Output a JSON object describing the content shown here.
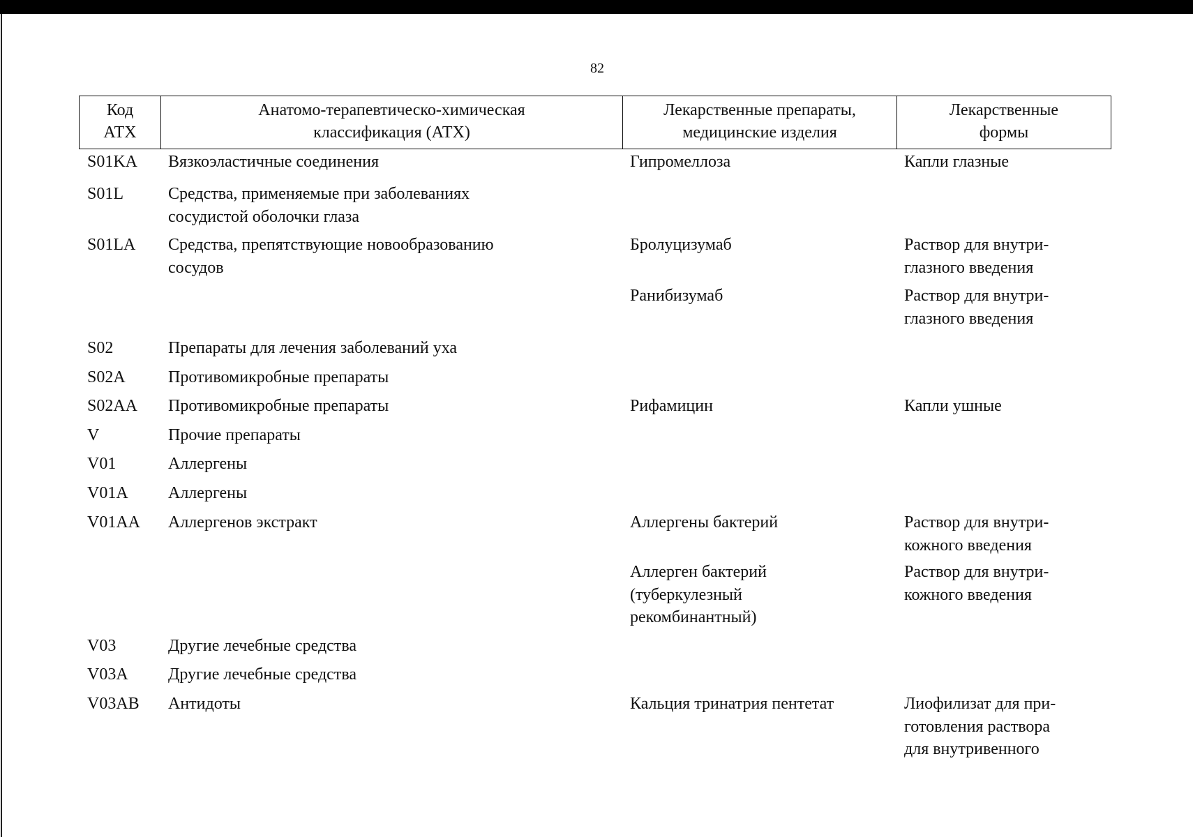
{
  "page_number": "82",
  "header": {
    "col1": [
      "Код",
      "АТХ"
    ],
    "col2": [
      "Анатомо-терапевтическо-химическая",
      "классификация (АТХ)"
    ],
    "col3": [
      "Лекарственные препараты,",
      "медицинские изделия"
    ],
    "col4": [
      "Лекарственные",
      "формы"
    ]
  },
  "rows": [
    {
      "code": "S01KA",
      "class": [
        "Вязкоэластичные соединения"
      ],
      "drug": [
        "Гипромеллоза"
      ],
      "form": [
        "Капли глазные"
      ]
    },
    {
      "code": "S01L",
      "class": [
        "Средства, применяемые при заболеваниях",
        "сосудистой оболочки глаза"
      ],
      "drug": [],
      "form": []
    },
    {
      "code": "S01LA",
      "class": [
        "Средства, препятствующие новообразованию",
        "сосудов"
      ],
      "drug": [
        "Бролуцизумаб"
      ],
      "form": [
        "Раствор для внутри-",
        "глазного введения"
      ]
    },
    {
      "code": "",
      "class": [],
      "drug": [
        "Ранибизумаб"
      ],
      "form": [
        "Раствор для внутри-",
        "глазного введения"
      ]
    },
    {
      "code": "S02",
      "class": [
        "Препараты для лечения заболеваний уха"
      ],
      "drug": [],
      "form": []
    },
    {
      "code": "S02A",
      "class": [
        "Противомикробные препараты"
      ],
      "drug": [],
      "form": []
    },
    {
      "code": "S02AA",
      "class": [
        "Противомикробные препараты"
      ],
      "drug": [
        "Рифамицин"
      ],
      "form": [
        "Капли ушные"
      ]
    },
    {
      "code": "V",
      "class": [
        "Прочие препараты"
      ],
      "drug": [],
      "form": []
    },
    {
      "code": "V01",
      "class": [
        "Аллергены"
      ],
      "drug": [],
      "form": []
    },
    {
      "code": "V01A",
      "class": [
        "Аллергены"
      ],
      "drug": [],
      "form": []
    },
    {
      "code": "V01AA",
      "class": [
        "Аллергенов экстракт"
      ],
      "drug": [
        "Аллергены бактерий"
      ],
      "form": [
        "Раствор для внутри-",
        "кожного введения"
      ]
    },
    {
      "code": "",
      "class": [],
      "drug": [
        "Аллерген бактерий",
        "(туберкулезный",
        "рекомбинантный)"
      ],
      "form": [
        "Раствор для внутри-",
        "кожного введения"
      ]
    },
    {
      "code": "V03",
      "class": [
        "Другие лечебные средства"
      ],
      "drug": [],
      "form": []
    },
    {
      "code": "V03A",
      "class": [
        "Другие лечебные средства"
      ],
      "drug": [],
      "form": []
    },
    {
      "code": "V03AB",
      "class": [
        "Антидоты"
      ],
      "drug": [
        "Кальция тринатрия пентетат"
      ],
      "form": [
        "Лиофилизат для при-",
        "готовления раствора",
        "для внутривенного"
      ]
    }
  ]
}
